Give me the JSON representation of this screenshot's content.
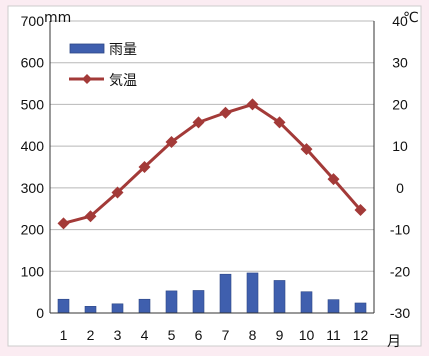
{
  "colors": {
    "background": "#fbecf2",
    "plot_background": "#ffffff",
    "bar": "#3f5fae",
    "bar_edge": "#2d4786",
    "line": "#a33a38",
    "grid": "#b8b8b8",
    "axis": "#333333"
  },
  "chart_data": {
    "type": "bar+line",
    "categories": [
      "1",
      "2",
      "3",
      "4",
      "5",
      "6",
      "7",
      "8",
      "9",
      "10",
      "11",
      "12"
    ],
    "xlabel_unit": "月",
    "left_axis": {
      "unit": "mm",
      "ylim": [
        0,
        700
      ],
      "ticks": [
        "0",
        "100",
        "200",
        "300",
        "400",
        "500",
        "600",
        "700"
      ]
    },
    "right_axis": {
      "unit": "℃",
      "ylim": [
        -30,
        40
      ],
      "ticks": [
        "-30",
        "-20",
        "-10",
        "0",
        "10",
        "20",
        "30",
        "40"
      ]
    },
    "series": [
      {
        "name": "雨量",
        "type": "bar",
        "axis": "left",
        "values": [
          33,
          16,
          22,
          33,
          53,
          54,
          93,
          96,
          78,
          51,
          32,
          24
        ]
      },
      {
        "name": "気温",
        "type": "line",
        "axis": "right",
        "marker": "diamond",
        "values": [
          -8.5,
          -6.8,
          -1.1,
          5.0,
          11.0,
          15.7,
          18.0,
          20.0,
          15.7,
          9.3,
          2.1,
          -5.3
        ]
      }
    ],
    "grid": true,
    "legend": "top-left"
  }
}
